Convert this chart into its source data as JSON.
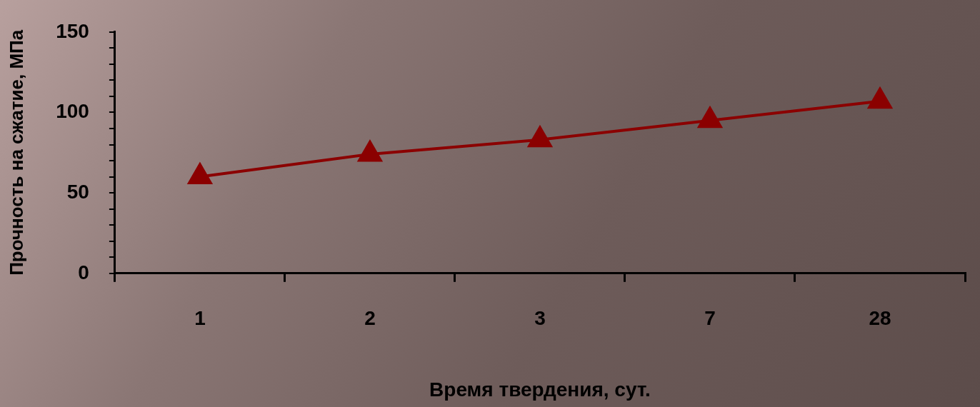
{
  "chart_data": {
    "type": "line",
    "xlabel": "Время твердения, сут.",
    "ylabel": "Прочность на сжатие, МПа",
    "categories": [
      "1",
      "2",
      "3",
      "7",
      "28"
    ],
    "series": [
      {
        "color": "#8b0000",
        "values": [
          60,
          74,
          83,
          95,
          107
        ]
      }
    ],
    "ylim": [
      0,
      150
    ],
    "yticks": [
      0,
      {
        "value": 10,
        "label": null
      },
      {
        "value": 20,
        "label": null
      },
      {
        "value": 30,
        "label": null
      },
      {
        "value": 40,
        "label": null
      },
      50,
      {
        "value": 60,
        "label": null
      },
      {
        "value": 70,
        "label": null
      },
      {
        "value": 80,
        "label": null
      },
      {
        "value": 90,
        "label": null
      },
      100,
      {
        "value": 110,
        "label": null
      },
      {
        "value": 120,
        "label": null
      },
      {
        "value": 130,
        "label": null
      },
      {
        "value": 140,
        "label": null
      },
      150
    ],
    "grid": false,
    "legend": false,
    "marker": "triangle",
    "line_style": "solid"
  }
}
